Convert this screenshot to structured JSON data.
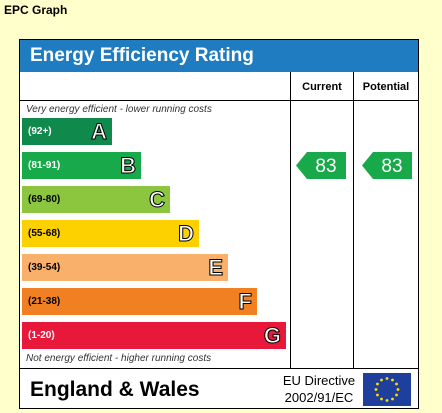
{
  "page_heading": "EPC Graph",
  "title": "Energy Efficiency Rating",
  "columns": {
    "current": "Current",
    "potential": "Potential"
  },
  "note_top": "Very energy efficient - lower running costs",
  "note_bottom": "Not energy efficient - higher running costs",
  "region": "England & Wales",
  "directive_line1": "EU Directive",
  "directive_line2": "2002/91/EC",
  "colors": {
    "title_bar": "#1f7cc1",
    "flag": "#1e3f9c",
    "flag_stars": "#ffdd00"
  },
  "chart_data": {
    "type": "bar",
    "bands": [
      {
        "letter": "A",
        "range": "(92+)",
        "min": 92,
        "max": 100,
        "color": "#108a4c",
        "range_color": "#ffffff"
      },
      {
        "letter": "B",
        "range": "(81-91)",
        "min": 81,
        "max": 91,
        "color": "#18a94a",
        "range_color": "#ffffff"
      },
      {
        "letter": "C",
        "range": "(69-80)",
        "min": 69,
        "max": 80,
        "color": "#8cc63e",
        "range_color": "#000000"
      },
      {
        "letter": "D",
        "range": "(55-68)",
        "min": 55,
        "max": 68,
        "color": "#fdd000",
        "range_color": "#000000"
      },
      {
        "letter": "E",
        "range": "(39-54)",
        "min": 39,
        "max": 54,
        "color": "#f9b06a",
        "range_color": "#000000"
      },
      {
        "letter": "F",
        "range": "(21-38)",
        "min": 21,
        "max": 38,
        "color": "#f08022",
        "range_color": "#000000"
      },
      {
        "letter": "G",
        "range": "(1-20)",
        "min": 1,
        "max": 20,
        "color": "#e8183a",
        "range_color": "#ffffff"
      }
    ],
    "current": {
      "value": 83,
      "band": "B",
      "color": "#18a94a"
    },
    "potential": {
      "value": 83,
      "band": "B",
      "color": "#18a94a"
    }
  }
}
